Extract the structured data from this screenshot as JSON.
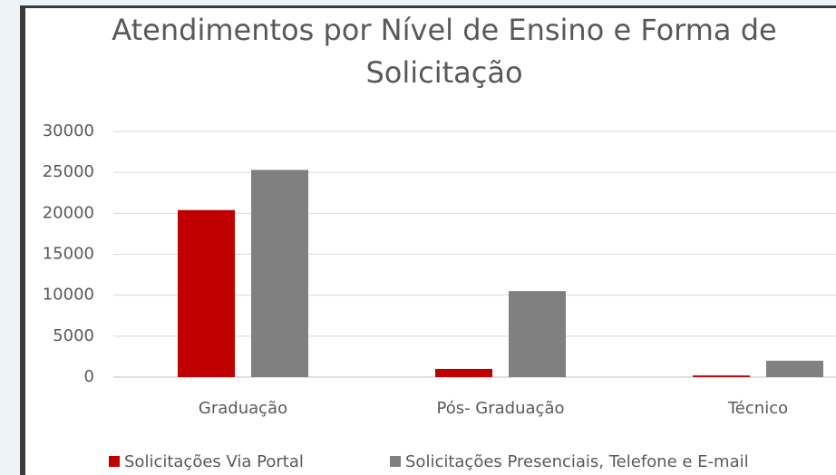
{
  "chart_data": {
    "type": "bar",
    "title": "Atendimentos por Nível de Ensino e Forma de Solicitação",
    "categories": [
      "Graduação",
      "Pós- Graduação",
      "Técnico"
    ],
    "series": [
      {
        "name": "Solicitações Via Portal",
        "color": "#c00000",
        "values": [
          20400,
          1000,
          200
        ]
      },
      {
        "name": "Solicitações Presenciais, Telefone e E-mail",
        "color": "#808080",
        "values": [
          25300,
          10500,
          2000
        ]
      }
    ],
    "ylim": [
      0,
      30000
    ],
    "yticks": [
      0,
      5000,
      10000,
      15000,
      20000,
      25000,
      30000
    ],
    "grid": true,
    "legend": "bottom"
  }
}
